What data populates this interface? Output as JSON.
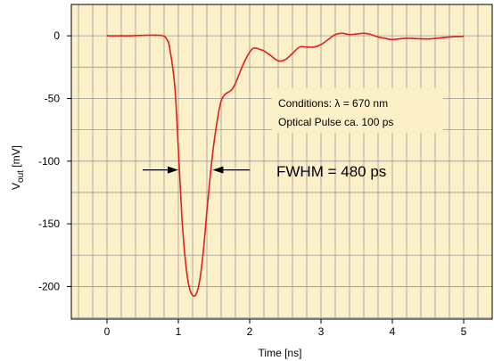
{
  "chart_data": {
    "type": "line",
    "xlabel": "Time [ns]",
    "ylabel": {
      "main": "V",
      "sub": "out",
      "unit": " [mV]"
    },
    "xlim": [
      -0.5,
      5.4
    ],
    "ylim": [
      -226,
      25
    ],
    "xticks": [
      0,
      1,
      2,
      3,
      4,
      5
    ],
    "yticks": [
      0,
      -50,
      -100,
      -150,
      -200
    ],
    "grid": true,
    "background": "#fcf0c8",
    "line_color": "#e02020",
    "series": [
      {
        "x": [
          0,
          0.3,
          0.6,
          0.78,
          0.84,
          0.88,
          0.95,
          1.0,
          1.05,
          1.1,
          1.15,
          1.2,
          1.25,
          1.3,
          1.35,
          1.4,
          1.45,
          1.5,
          1.55,
          1.6,
          1.65,
          1.7,
          1.75,
          1.8,
          1.85,
          1.9,
          1.95,
          2.0,
          2.05,
          2.1,
          2.15,
          2.2,
          2.3,
          2.4,
          2.5,
          2.6,
          2.7,
          2.8,
          2.9,
          3.0,
          3.1,
          3.2,
          3.3,
          3.4,
          3.5,
          3.6,
          3.7,
          3.8,
          3.9,
          4.0,
          4.2,
          4.5,
          4.8,
          5.0
        ],
        "y": [
          0,
          0,
          0.5,
          0,
          -3,
          -10,
          -40,
          -90,
          -145,
          -180,
          -200,
          -207,
          -206,
          -195,
          -172,
          -140,
          -110,
          -85,
          -66,
          -52,
          -47,
          -45,
          -43,
          -38,
          -31,
          -24,
          -18,
          -13,
          -10,
          -10,
          -11,
          -12,
          -16,
          -20,
          -19,
          -14,
          -9,
          -9,
          -9,
          -7,
          -3,
          1,
          2,
          1,
          1.5,
          2,
          1,
          -1,
          -2,
          -3,
          -2,
          -2.5,
          -1,
          -0.5
        ]
      }
    ],
    "annotations": {
      "conditions_line1": "Conditions:  λ = 670 nm",
      "conditions_line2": "Optical Pulse ca. 100 ps",
      "fwhm": "FWHM = 480 ps"
    },
    "fwhm_marker": {
      "y": -107,
      "x_left": 1.0,
      "x_right": 1.48
    }
  }
}
